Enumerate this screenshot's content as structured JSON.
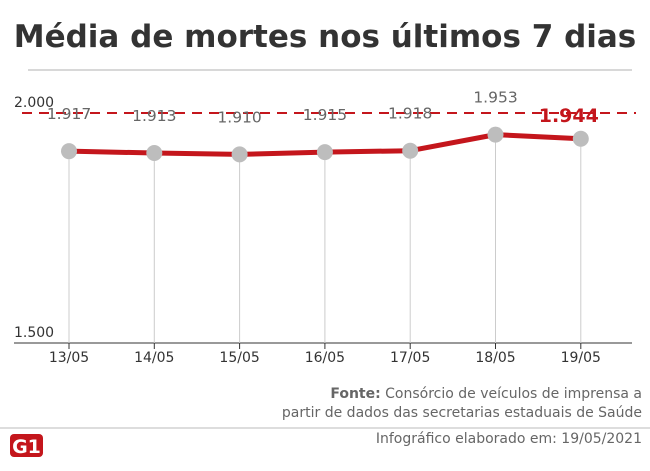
{
  "title": "Média de mortes nos últimos 7 dias",
  "chart_data": {
    "type": "line",
    "title": "Média de mortes nos últimos 7 dias",
    "categories": [
      "13/05",
      "14/05",
      "15/05",
      "16/05",
      "17/05",
      "18/05",
      "19/05"
    ],
    "values": [
      1917,
      1913,
      1910,
      1915,
      1918,
      1953,
      1944
    ],
    "data_labels": [
      "1.917",
      "1.913",
      "1.910",
      "1.915",
      "1.918",
      "1.953",
      "1.944"
    ],
    "ylim": [
      1500,
      2000
    ],
    "y_ticks": [
      {
        "value": 1500,
        "label": "1.500"
      },
      {
        "value": 2000,
        "label": "2.000"
      }
    ],
    "reference_line": {
      "value": 2000,
      "style": "dashed"
    },
    "grid": false,
    "colors": {
      "line": "#c4161c",
      "marker": "#bdbdbd",
      "highlight": "#c4161c"
    }
  },
  "footer": {
    "source_label": "Fonte:",
    "source_line1": " Consórcio de veículos de imprensa a",
    "source_line2": "partir de dados das secretarias estaduais de Saúde",
    "credit": "Infográfico elaborado em: 19/05/2021",
    "logo": "G1"
  }
}
